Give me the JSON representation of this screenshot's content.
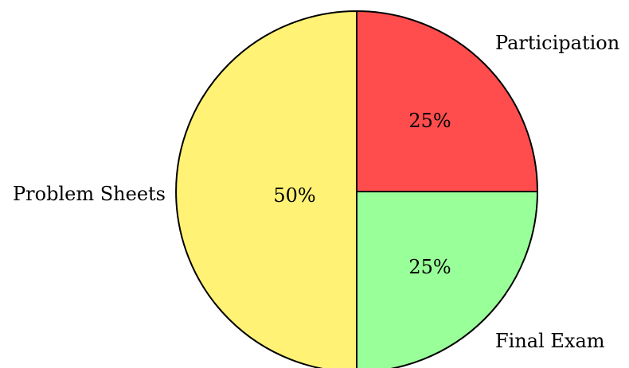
{
  "chart_data": {
    "type": "pie",
    "title": "",
    "slices": [
      {
        "label": "Participation",
        "value": 25,
        "value_label": "25%",
        "color": "#ff4d4d"
      },
      {
        "label": "Final Exam",
        "value": 25,
        "value_label": "25%",
        "color": "#99ff99"
      },
      {
        "label": "Problem Sheets",
        "value": 50,
        "value_label": "50%",
        "color": "#fff275"
      }
    ],
    "start_angle_deg": 90,
    "direction": "clockwise",
    "legend": "none",
    "labels": "outside-category, inside-percent"
  }
}
